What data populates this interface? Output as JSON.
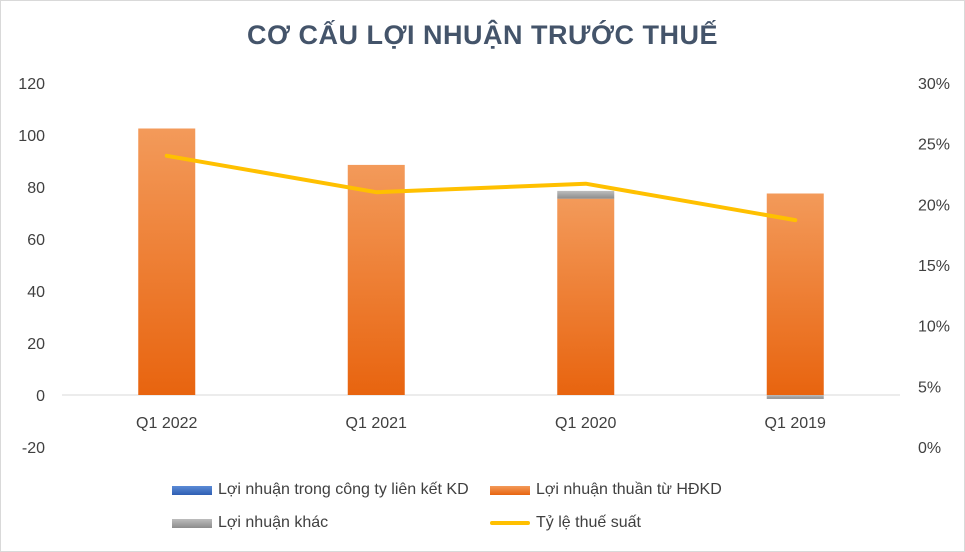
{
  "chart_data": {
    "type": "bar",
    "title": "CƠ CẤU LỢI NHUẬN TRƯỚC THUẾ",
    "categories": [
      "Q1 2022",
      "Q1 2021",
      "Q1 2020",
      "Q1 2019"
    ],
    "series": [
      {
        "name": "Lợi nhuận trong công ty liên kết KD",
        "type": "bar",
        "axis": "left",
        "values": [
          0,
          0,
          0,
          0
        ],
        "color": "#4472c4"
      },
      {
        "name": "Lợi nhuận thuần từ HĐKD",
        "type": "bar",
        "axis": "left",
        "values": [
          102.5,
          88.5,
          75.5,
          77.5
        ],
        "color": "#f07c2a"
      },
      {
        "name": "Lợi nhuận khác",
        "type": "bar",
        "axis": "left",
        "values": [
          0,
          0,
          3,
          -1.5
        ],
        "color": "#a5a5a5"
      },
      {
        "name": "Tỷ lệ thuế suất",
        "type": "line",
        "axis": "right",
        "values": [
          24.0,
          21.0,
          21.7,
          18.7
        ],
        "color": "#ffc000"
      }
    ],
    "y_left": {
      "ylim": [
        -20,
        120
      ],
      "ticks": [
        "120",
        "100",
        "80",
        "60",
        "40",
        "20",
        "0",
        "-20"
      ]
    },
    "y_right": {
      "ylim": [
        0,
        30
      ],
      "ticks": [
        "30%",
        "25%",
        "20%",
        "15%",
        "10%",
        "5%",
        "0%"
      ]
    },
    "grid": false,
    "legend_position": "bottom"
  }
}
